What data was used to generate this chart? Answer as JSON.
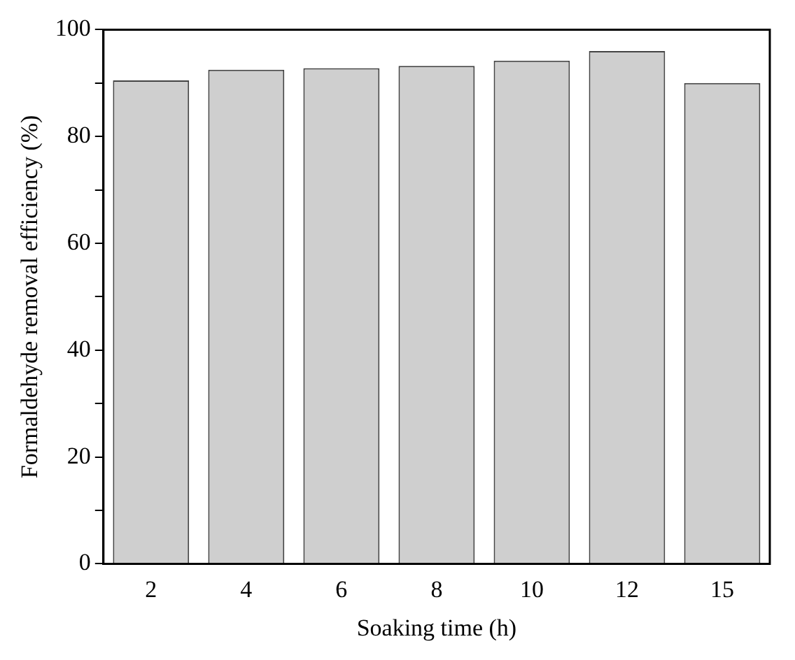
{
  "chart_data": {
    "type": "bar",
    "xlabel": "Soaking time (h)",
    "ylabel": "Formaldehyde removal efficiency (%)",
    "categories": [
      "2",
      "4",
      "6",
      "8",
      "10",
      "12",
      "15"
    ],
    "values": [
      90.5,
      92.5,
      92.8,
      93.2,
      94.2,
      96,
      90
    ],
    "color": "#cfcfcf",
    "ylim": [
      0,
      100
    ],
    "yticks": [
      0,
      {
        "value": 10,
        "label": null
      },
      20,
      {
        "value": 30,
        "label": null
      },
      40,
      {
        "value": 50,
        "label": null
      },
      60,
      {
        "value": 70,
        "label": null
      },
      80,
      {
        "value": 90,
        "label": null
      },
      100
    ],
    "grid": false,
    "legend": false
  }
}
